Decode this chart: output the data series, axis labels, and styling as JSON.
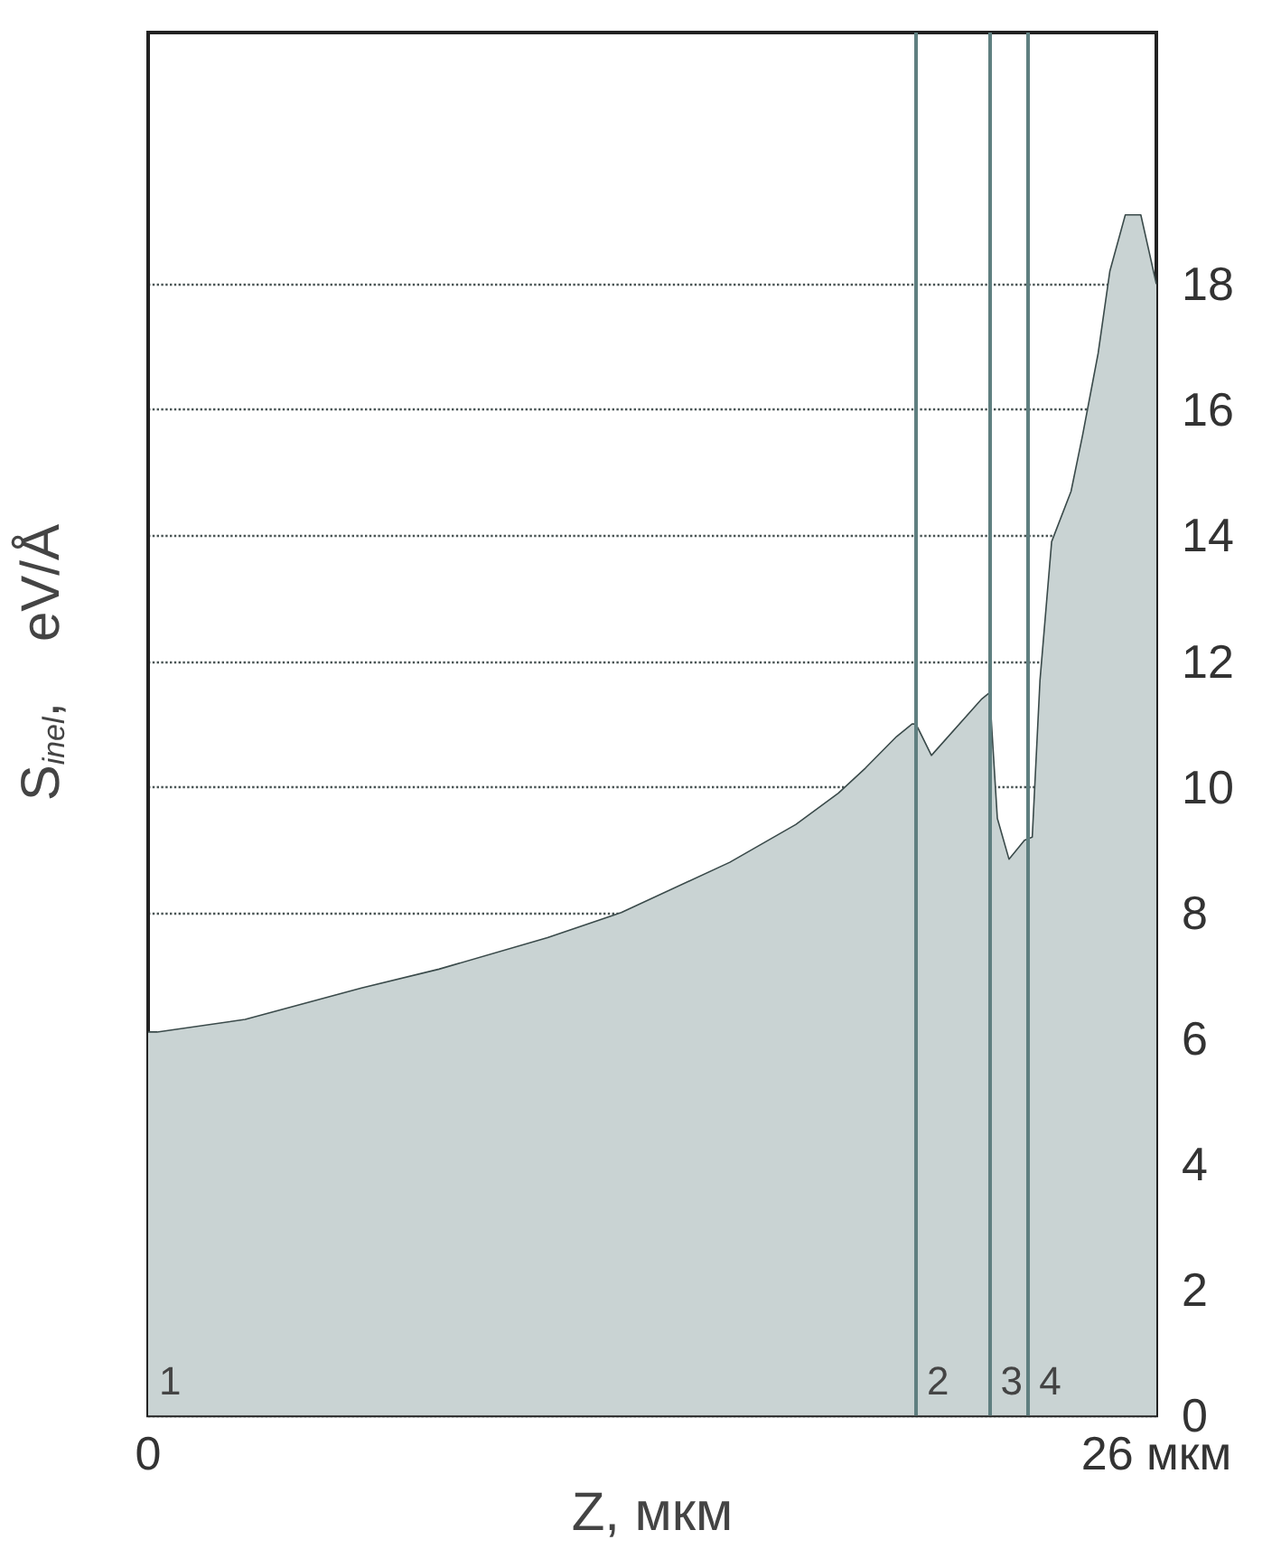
{
  "chart_data": {
    "type": "area",
    "xlabel": "Z, мкм",
    "ylabel": "S$_{inel}$,    eV/Å",
    "x": [
      0,
      0.23,
      2.5,
      5.5,
      7.5,
      10.3,
      12.2,
      15.0,
      16.7,
      17.8,
      18.5,
      19.3,
      19.7,
      19.8,
      20.2,
      21.5,
      21.7,
      21.9,
      22.2,
      22.6,
      22.8,
      23.0,
      23.3,
      23.8,
      24.1,
      24.5,
      24.8,
      25.2,
      25.6,
      26
    ],
    "values": [
      6.1,
      6.1,
      6.3,
      6.8,
      7.1,
      7.6,
      8.0,
      8.8,
      9.4,
      9.9,
      10.3,
      10.8,
      11.0,
      11.0,
      10.5,
      11.4,
      11.5,
      9.5,
      8.85,
      9.15,
      9.2,
      11.7,
      13.9,
      14.7,
      15.6,
      16.9,
      18.2,
      19.1,
      19.1,
      18.0
    ],
    "color": "#c9d3d3",
    "xlim": [
      0,
      26
    ],
    "xticks": [
      0,
      {
        "value": 26,
        "label": "26 мкм"
      }
    ],
    "ylim": [
      0,
      22
    ],
    "yticks": [
      0,
      2,
      4,
      6,
      8,
      10,
      12,
      14,
      16,
      18
    ],
    "grid": "y",
    "marker": "none",
    "line_style": "solid",
    "ref_lines": [
      {
        "axis": "x",
        "value": 19.8,
        "color": "#5f7f80"
      },
      {
        "axis": "x",
        "value": 21.7,
        "color": "#5f7f80"
      },
      {
        "axis": "x",
        "value": 22.7,
        "color": "#5f7f80"
      }
    ],
    "annotations": [
      "1",
      "2",
      "3",
      "4"
    ]
  }
}
